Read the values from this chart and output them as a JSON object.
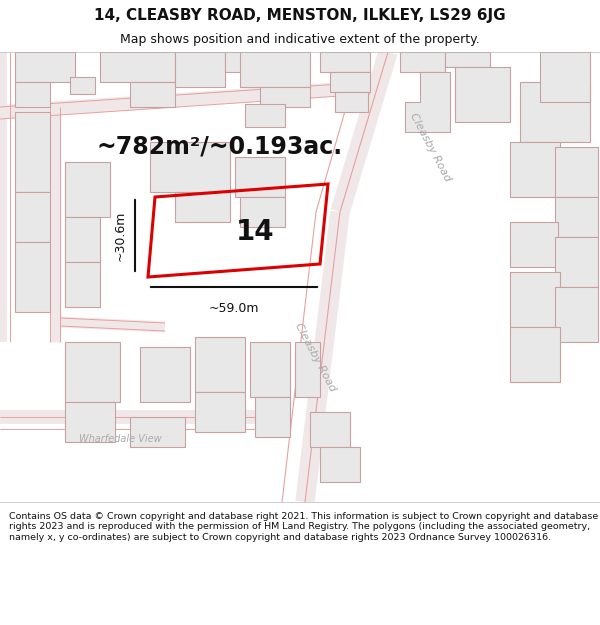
{
  "title_line1": "14, CLEASBY ROAD, MENSTON, ILKLEY, LS29 6JG",
  "title_line2": "Map shows position and indicative extent of the property.",
  "area_text": "~782m²/~0.193ac.",
  "label_14": "14",
  "dim_width": "~59.0m",
  "dim_height": "~30.6m",
  "road_label_right": "Cleasby Road",
  "road_label_bottom": "Cleasby Road",
  "road_label_wharfedale": "Wharfedale View",
  "footer_text": "Contains OS data © Crown copyright and database right 2021. This information is subject to Crown copyright and database rights 2023 and is reproduced with the permission of HM Land Registry. The polygons (including the associated geometry, namely x, y co-ordinates) are subject to Crown copyright and database rights 2023 Ordnance Survey 100026316.",
  "bg_color": "#ffffff",
  "map_bg": "#ffffff",
  "plot_color": "#dd0000",
  "building_fill": "#e8e8e8",
  "building_edge": "#c8a0a0",
  "road_line_color": "#e8a0a0",
  "text_color": "#333333",
  "dim_line_color": "#111111",
  "footer_bg": "#ffffff",
  "road_label_color": "#aaaaaa",
  "title_fontsize": 11,
  "subtitle_fontsize": 9,
  "area_fontsize": 17,
  "label_fontsize": 20,
  "dim_fontsize": 9,
  "road_label_fontsize": 8,
  "footer_fontsize": 6.8
}
